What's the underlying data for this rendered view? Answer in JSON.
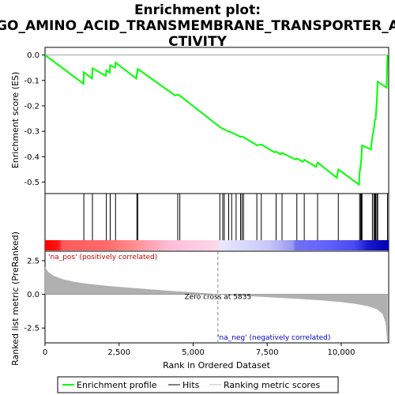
{
  "chart_data": {
    "type": "line",
    "title_lines": [
      "Enrichment plot:",
      "GO_AMINO_ACID_TRANSMEMBRANE_TRANSPORTER_A",
      "CTIVITY"
    ],
    "xlabel": "Rank in Ordered Dataset",
    "xlim": [
      0,
      11600
    ],
    "x_ticks": [
      0,
      2500,
      5000,
      7500,
      10000
    ],
    "x_tick_labels": [
      "0",
      "2,500",
      "5,000",
      "7,500",
      "10,000"
    ],
    "es_panel": {
      "ylabel": "Enrichment score (ES)",
      "ylim": [
        -0.545,
        0.03
      ],
      "y_ticks": [
        0.0,
        -0.1,
        -0.2,
        -0.3,
        -0.4,
        -0.5
      ],
      "y_tick_labels": [
        "0.0",
        "-0.1",
        "-0.2",
        "-0.3",
        "-0.4",
        "-0.5"
      ],
      "line_color": "#00ff00",
      "points": [
        [
          0,
          0.0
        ],
        [
          1300,
          -0.113
        ],
        [
          1310,
          -0.068
        ],
        [
          1590,
          -0.092
        ],
        [
          1600,
          -0.052
        ],
        [
          2050,
          -0.082
        ],
        [
          2070,
          -0.06
        ],
        [
          2180,
          -0.07
        ],
        [
          2200,
          -0.04
        ],
        [
          2360,
          -0.05
        ],
        [
          2380,
          -0.03
        ],
        [
          3080,
          -0.092
        ],
        [
          3100,
          -0.075
        ],
        [
          3130,
          -0.055
        ],
        [
          4400,
          -0.16
        ],
        [
          4480,
          -0.155
        ],
        [
          4550,
          -0.16
        ],
        [
          5900,
          -0.283
        ],
        [
          6000,
          -0.29
        ],
        [
          6050,
          -0.293
        ],
        [
          6200,
          -0.301
        ],
        [
          6300,
          -0.305
        ],
        [
          6450,
          -0.313
        ],
        [
          6600,
          -0.322
        ],
        [
          6650,
          -0.32
        ],
        [
          6700,
          -0.323
        ],
        [
          7100,
          -0.351
        ],
        [
          7150,
          -0.355
        ],
        [
          7300,
          -0.352
        ],
        [
          7750,
          -0.383
        ],
        [
          7800,
          -0.38
        ],
        [
          7950,
          -0.391
        ],
        [
          8000,
          -0.385
        ],
        [
          8450,
          -0.411
        ],
        [
          8500,
          -0.407
        ],
        [
          8700,
          -0.42
        ],
        [
          8750,
          -0.412
        ],
        [
          9150,
          -0.44
        ],
        [
          9200,
          -0.423
        ],
        [
          9850,
          -0.483
        ],
        [
          9900,
          -0.45
        ],
        [
          10600,
          -0.51
        ],
        [
          10620,
          -0.46
        ],
        [
          10650,
          -0.44
        ],
        [
          10680,
          -0.405
        ],
        [
          10700,
          -0.355
        ],
        [
          11000,
          -0.372
        ],
        [
          11050,
          -0.32
        ],
        [
          11100,
          -0.29
        ],
        [
          11130,
          -0.255
        ],
        [
          11160,
          -0.253
        ],
        [
          11200,
          -0.18
        ],
        [
          11230,
          -0.105
        ],
        [
          11530,
          -0.128
        ],
        [
          11560,
          0.0
        ]
      ]
    },
    "hits": [
      1310,
      1600,
      2070,
      2200,
      2380,
      3100,
      3130,
      4480,
      4550,
      5900,
      6000,
      6050,
      6200,
      6300,
      6450,
      6600,
      6650,
      6700,
      7150,
      7300,
      7800,
      8000,
      8500,
      8750,
      9200,
      9900,
      10620,
      10650,
      10680,
      10700,
      11050,
      11100,
      11130,
      11160,
      11200,
      11230,
      11560
    ],
    "color_bar": {
      "stops": [
        [
          0,
          "#ff0000"
        ],
        [
          0.04,
          "#ff1818"
        ],
        [
          0.05,
          "#ff5a5a"
        ],
        [
          0.18,
          "#ff6a6a"
        ],
        [
          0.25,
          "#ff8a8a"
        ],
        [
          0.36,
          "#ffbcd8"
        ],
        [
          0.5,
          "#ffd8ea"
        ],
        [
          0.51,
          "#e8e8ff"
        ],
        [
          0.65,
          "#c8c8f8"
        ],
        [
          0.72,
          "#9a9af0"
        ],
        [
          0.73,
          "#7070ee"
        ],
        [
          0.8,
          "#6666ff"
        ],
        [
          0.9,
          "#4a4af0"
        ],
        [
          0.94,
          "#1a1acc"
        ],
        [
          1.0,
          "#0000b0"
        ]
      ]
    },
    "metric_panel": {
      "ylabel": "Ranked list metric (PreRanked)",
      "ylim": [
        -3.6,
        3.2
      ],
      "y_ticks": [
        2.5,
        0.0,
        -2.5
      ],
      "y_tick_labels": [
        "2.5",
        "0.0",
        "-2.5"
      ],
      "curve": [
        [
          0,
          2.0
        ],
        [
          100,
          1.65
        ],
        [
          300,
          1.35
        ],
        [
          600,
          1.1
        ],
        [
          1000,
          0.9
        ],
        [
          1500,
          0.75
        ],
        [
          2000,
          0.63
        ],
        [
          2500,
          0.53
        ],
        [
          3000,
          0.45
        ],
        [
          3500,
          0.36
        ],
        [
          4000,
          0.28
        ],
        [
          4500,
          0.2
        ],
        [
          5000,
          0.13
        ],
        [
          5500,
          0.05
        ],
        [
          5835,
          0.0
        ],
        [
          6500,
          -0.07
        ],
        [
          7000,
          -0.13
        ],
        [
          7500,
          -0.19
        ],
        [
          8000,
          -0.25
        ],
        [
          8500,
          -0.31
        ],
        [
          9000,
          -0.38
        ],
        [
          9500,
          -0.46
        ],
        [
          10000,
          -0.56
        ],
        [
          10500,
          -0.7
        ],
        [
          10900,
          -0.87
        ],
        [
          11200,
          -1.08
        ],
        [
          11400,
          -1.45
        ],
        [
          11500,
          -2.1
        ],
        [
          11560,
          -3.5
        ]
      ],
      "zero_cross": 5835,
      "zero_cross_label": "Zero cross at 5835",
      "pos_label": "'na_pos' (positively correlated)",
      "neg_label": "'na_neg' (negatively correlated)",
      "pos_color": "#cc0000",
      "neg_color": "#0000cc"
    },
    "legend": {
      "placement": "bottom",
      "entries": [
        {
          "label": "Enrichment profile",
          "color": "#00ff00"
        },
        {
          "label": "Hits",
          "color": "#000000"
        },
        {
          "label": "Ranking metric scores",
          "color": "#c0c0c0"
        }
      ]
    }
  }
}
